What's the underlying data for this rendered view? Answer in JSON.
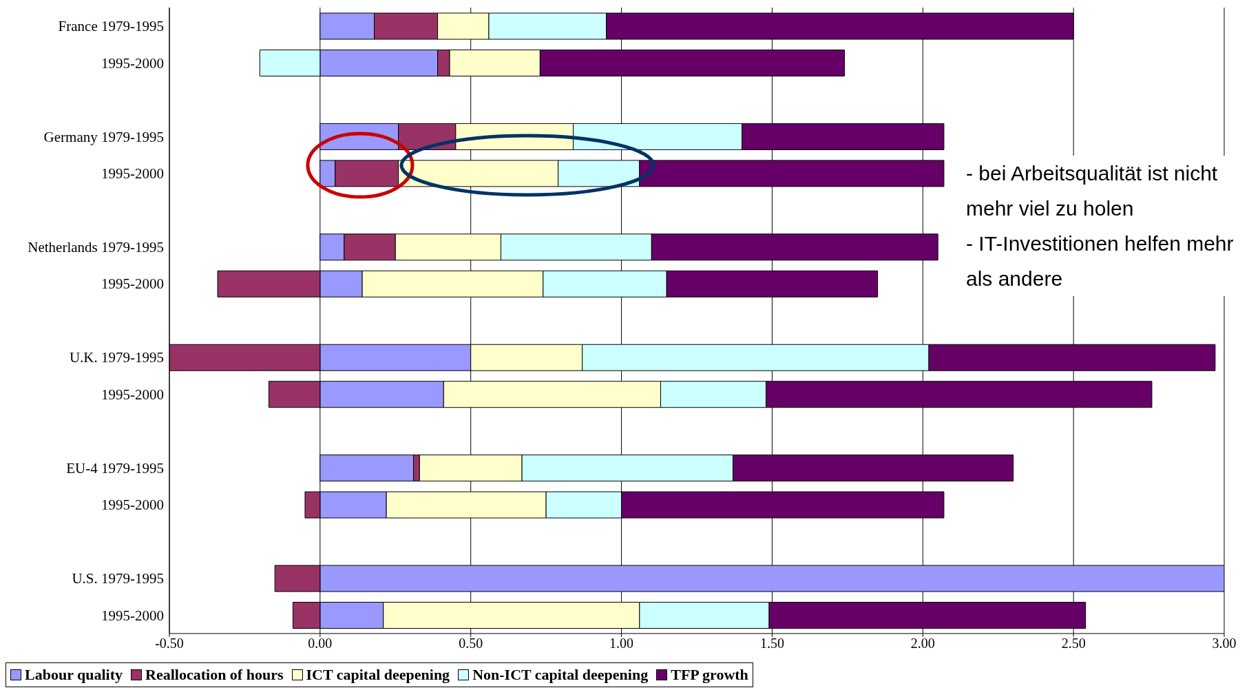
{
  "chart_data": {
    "type": "bar",
    "orientation": "horizontal",
    "stacked": true,
    "categories": [
      "France 1979-1995",
      "1995-2000",
      null,
      "Germany 1979-1995",
      "1995-2000",
      null,
      "Netherlands 1979-1995",
      "1995-2000",
      null,
      "U.K. 1979-1995",
      "1995-2000",
      null,
      "EU-4 1979-1995",
      "1995-2000",
      null,
      "U.S. 1979-1995",
      "1995-2000"
    ],
    "series": [
      {
        "name": "Labour quality",
        "color": "#9999ff",
        "values": [
          0.18,
          0.39,
          null,
          0.26,
          0.05,
          null,
          0.08,
          0.14,
          null,
          0.5,
          0.41,
          null,
          0.31,
          0.22,
          null,
          3.0,
          0.21
        ]
      },
      {
        "name": "Reallocation of hours",
        "color": "#993366",
        "values": [
          0.21,
          0.04,
          null,
          0.19,
          0.21,
          null,
          0.17,
          -0.34,
          null,
          -0.5,
          -0.17,
          null,
          0.02,
          -0.05,
          null,
          -0.15,
          -0.09
        ]
      },
      {
        "name": "ICT capital deepening",
        "color": "#ffffcc",
        "values": [
          0.17,
          0.3,
          null,
          0.39,
          0.53,
          null,
          0.35,
          0.6,
          null,
          0.37,
          0.72,
          null,
          0.34,
          0.53,
          null,
          null,
          0.85
        ]
      },
      {
        "name": "Non-ICT capital deepening",
        "color": "#ccffff",
        "values": [
          0.39,
          -0.2,
          null,
          0.56,
          0.27,
          null,
          0.5,
          0.41,
          null,
          1.15,
          0.35,
          null,
          0.7,
          0.25,
          null,
          null,
          0.43
        ]
      },
      {
        "name": "TFP growth",
        "color": "#660066",
        "values": [
          1.55,
          1.01,
          null,
          0.67,
          1.01,
          null,
          0.95,
          0.7,
          null,
          0.95,
          1.28,
          null,
          0.93,
          1.07,
          null,
          null,
          1.05
        ]
      }
    ],
    "xlim": [
      -0.5,
      3.0
    ],
    "xticks": [
      {
        "value": -0.5,
        "label": "-0.50"
      },
      {
        "value": 0,
        "label": "0.00"
      },
      {
        "value": 0.5,
        "label": "0.50"
      },
      {
        "value": 1,
        "label": "1.00"
      },
      {
        "value": 1.5,
        "label": "1.50"
      },
      {
        "value": 2,
        "label": "2.00"
      },
      {
        "value": 2.5,
        "label": "2.50"
      },
      {
        "value": 3,
        "label": "3.00"
      }
    ],
    "grid": "x",
    "legend": "bottom",
    "annotations": [
      "- bei Arbeitsqualität ist nicht mehr viel zu holen",
      "- IT-Investitionen helfen mehr als andere"
    ]
  }
}
